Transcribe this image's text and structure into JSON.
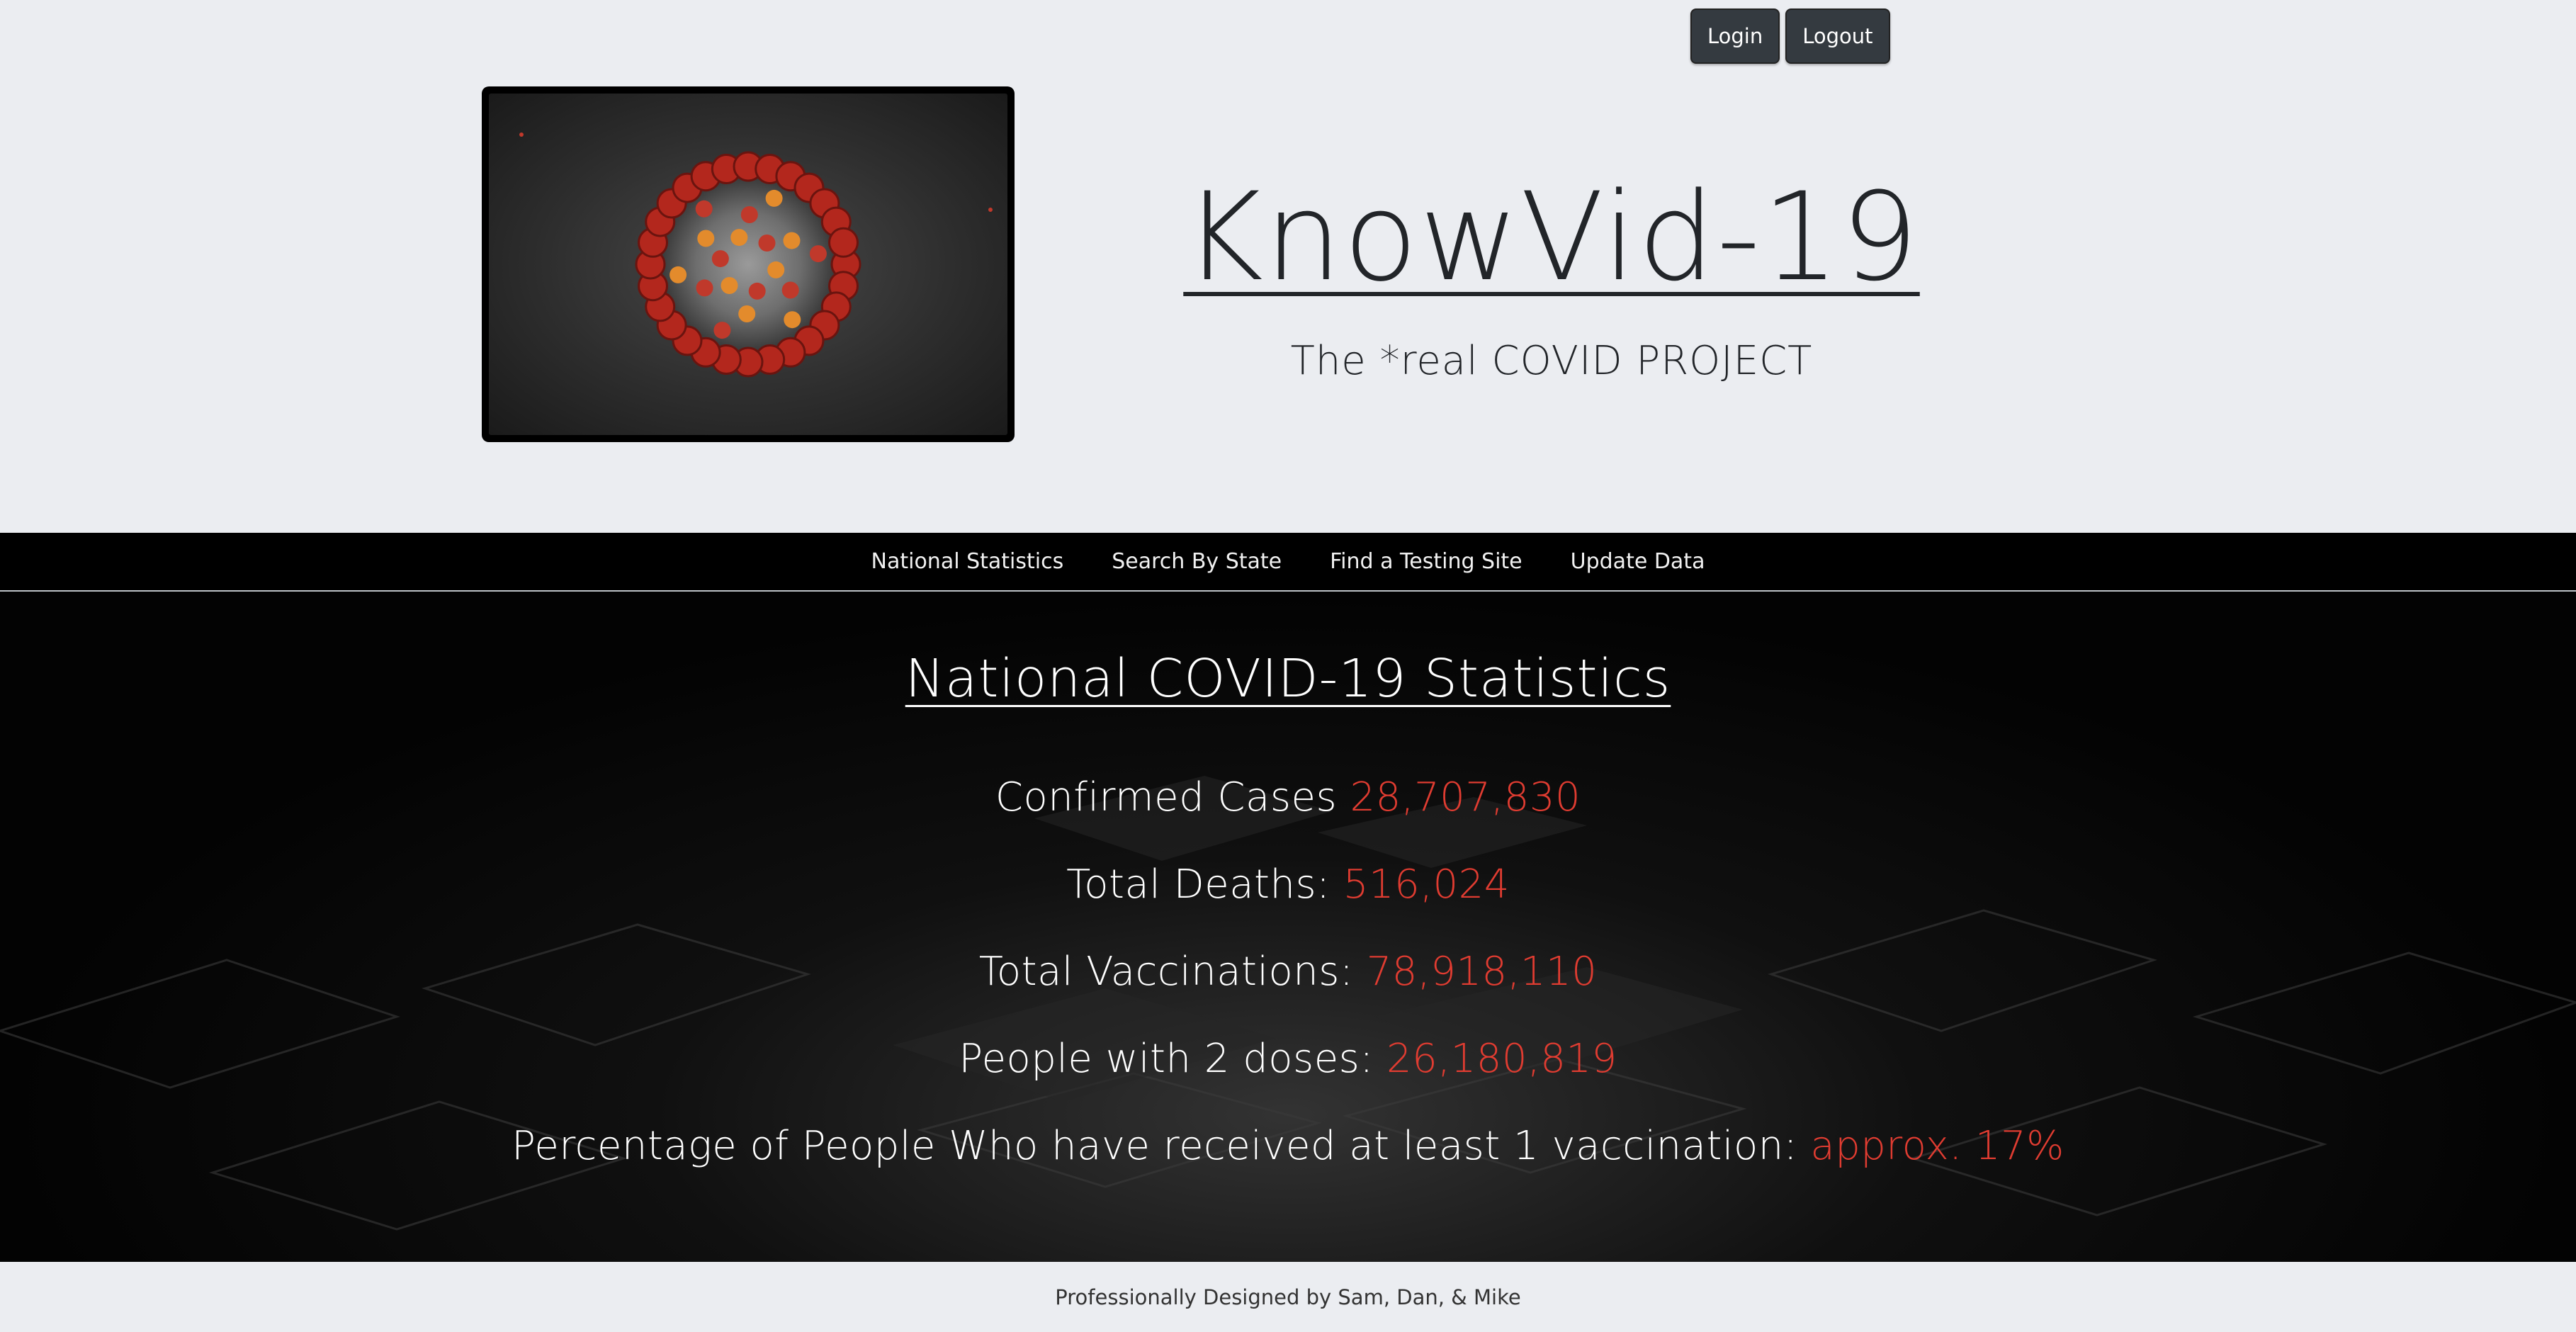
{
  "header": {
    "login_label": "Login",
    "logout_label": "Logout",
    "site_title": "KnowVid-19",
    "site_subtitle": "The *real COVID PROJECT",
    "hero_image_icon": "coronavirus-image"
  },
  "nav": {
    "items": [
      {
        "label": "National Statistics"
      },
      {
        "label": "Search By State"
      },
      {
        "label": "Find a Testing Site"
      },
      {
        "label": "Update Data"
      }
    ]
  },
  "stats": {
    "heading": "National COVID-19 Statistics",
    "items": [
      {
        "label": "Confirmed Cases",
        "value": "28,707,830"
      },
      {
        "label": "Total Deaths:",
        "value": "516,024"
      },
      {
        "label": "Total Vaccinations:",
        "value": "78,918,110"
      },
      {
        "label": "People with 2 doses:",
        "value": "26,180,819"
      },
      {
        "label": "Percentage of People Who have received at least 1 vaccination:",
        "value": "approx. 17%"
      }
    ]
  },
  "footer": {
    "credit": "Professionally Designed by Sam, Dan, & Mike"
  },
  "colors": {
    "accent_red": "#e03c31",
    "navbar_bg": "#000000",
    "page_bg": "#ebedf1",
    "button_bg": "#343a40"
  }
}
